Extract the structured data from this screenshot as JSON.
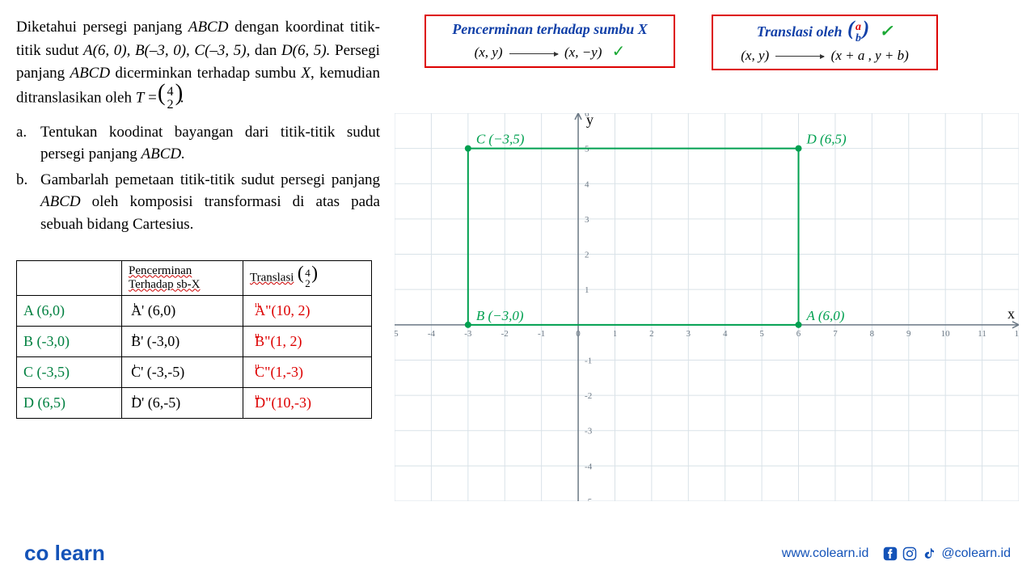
{
  "problem": {
    "line1": "Diketahui persegi panjang ",
    "abcd": "ABCD",
    "line1b": " dengan koordinat titik-titik sudut ",
    "pts": "A(6, 0), B(–3, 0), C(–3, 5), ",
    "line2": "dan ",
    "ptD": "D(6, 5). ",
    "line2b": "Persegi panjang ",
    "line3": " dicerminkan terhadap sumbu ",
    "sumbuX": "X",
    "line4": ", kemudian ditranslasikan oleh ",
    "Tvar": "T",
    "eq": " = ",
    "vecTop": "4",
    "vecBot": "2",
    "period": "."
  },
  "questions": {
    "a_letter": "a.",
    "a_text": "Tentukan koodinat bayangan dari titik-titik sudut persegi panjang ",
    "a_abcd": "ABCD.",
    "b_letter": "b.",
    "b_text": "Gambarlah pemetaan titik-titik sudut persegi panjang ",
    "b_abcd": "ABCD",
    "b_text2": " oleh komposisi transformasi di atas pada sebuah bidang Cartesius."
  },
  "tableHeaders": {
    "col1": "",
    "col2a": "Pencerminan",
    "col2b": "Terhadap sb-X",
    "col3": "Translasi",
    "vecTop": "4",
    "vecBot": "2"
  },
  "tableRows": [
    {
      "orig": "A (6,0)",
      "refl": "A' (6,0)",
      "trans": "A\"(10, 2)"
    },
    {
      "orig": "B (-3,0)",
      "refl": "B' (-3,0)",
      "trans": "B\"(1, 2)"
    },
    {
      "orig": "C (-3,5)",
      "refl": "C' (-3,-5)",
      "trans": "C\"(1,-3)"
    },
    {
      "orig": "D (6,5)",
      "refl": "D' (6,-5)",
      "trans": "D\"(10,-3)"
    }
  ],
  "ruleBox1": {
    "title": "Pencerminan terhadap sumbu X",
    "from": "(x, y)",
    "to": "(x, −y)"
  },
  "ruleBox2": {
    "title": "Translasi oleh",
    "vecTopLabel": "a",
    "vecBotLabel": "b",
    "from": "(x, y)",
    "to": "(x + a , y + b)"
  },
  "graph": {
    "xmin": -5,
    "xmax": 12,
    "ymin": -5,
    "ymax": 6,
    "xtick_step": 1,
    "ytick_step": 1,
    "grid_color": "#d9e2e8",
    "axis_color": "#6b7885",
    "rect_color": "#00a050",
    "rect_width": 2,
    "point_color": "#00a050",
    "label_color": "#00a050",
    "labels": {
      "A": "A (6,0)",
      "B": "B (−3,0)",
      "C": "C (−3,5)",
      "D": "D (6,5)",
      "yaxis": "y",
      "xaxis": "x"
    },
    "points": {
      "A": [
        6,
        0
      ],
      "B": [
        -3,
        0
      ],
      "C": [
        -3,
        5
      ],
      "D": [
        6,
        5
      ]
    }
  },
  "footer": {
    "logo_co": "co",
    "logo_learn": "learn",
    "url": "www.colearn.id",
    "handle": "@colearn.id"
  }
}
